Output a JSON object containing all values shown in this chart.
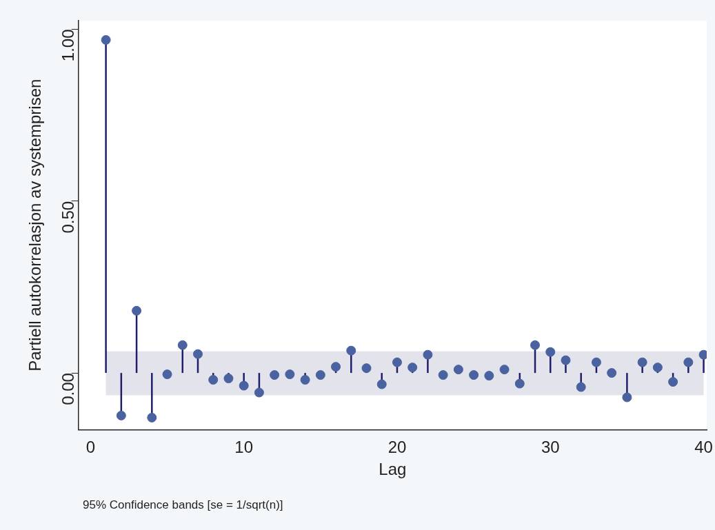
{
  "chart_data": {
    "type": "lollipop",
    "xlabel": "Lag",
    "ylabel": "Partiell autokorrelasjon av systemprisen",
    "annotations": [
      "95% Confidence bands [se = 1/sqrt(n)]"
    ],
    "x": [
      1,
      2,
      3,
      4,
      5,
      6,
      7,
      8,
      9,
      10,
      11,
      12,
      13,
      14,
      15,
      16,
      17,
      18,
      19,
      20,
      21,
      22,
      23,
      24,
      25,
      26,
      27,
      28,
      29,
      30,
      31,
      32,
      33,
      34,
      35,
      36,
      37,
      38,
      39,
      40
    ],
    "values": [
      0.969,
      -0.124,
      0.181,
      -0.13,
      -0.004,
      0.081,
      0.055,
      -0.02,
      -0.016,
      -0.037,
      -0.057,
      -0.006,
      -0.004,
      -0.02,
      -0.006,
      0.018,
      0.065,
      0.014,
      -0.033,
      0.031,
      0.016,
      0.053,
      -0.006,
      0.01,
      -0.006,
      -0.008,
      0.01,
      -0.031,
      0.081,
      0.061,
      0.037,
      -0.041,
      0.031,
      0,
      -0.071,
      0.031,
      0.016,
      -0.026,
      0.031,
      0.053
    ],
    "color": "#4a62a0",
    "bands": [
      {
        "axis": "y",
        "from": -0.065,
        "to": 0.063,
        "color": "#e3e3ec"
      }
    ],
    "xlim": [
      -0.8,
      40.2
    ],
    "xticks": [
      0,
      10,
      20,
      30,
      40
    ],
    "ylim": [
      -0.165,
      1.025
    ],
    "yticks": [
      {
        "value": 0,
        "label": "0.00"
      },
      {
        "value": 0.5,
        "label": "0.50"
      },
      {
        "value": 1,
        "label": "1.00"
      }
    ],
    "grid": false,
    "legend": false,
    "marker": "circle"
  }
}
